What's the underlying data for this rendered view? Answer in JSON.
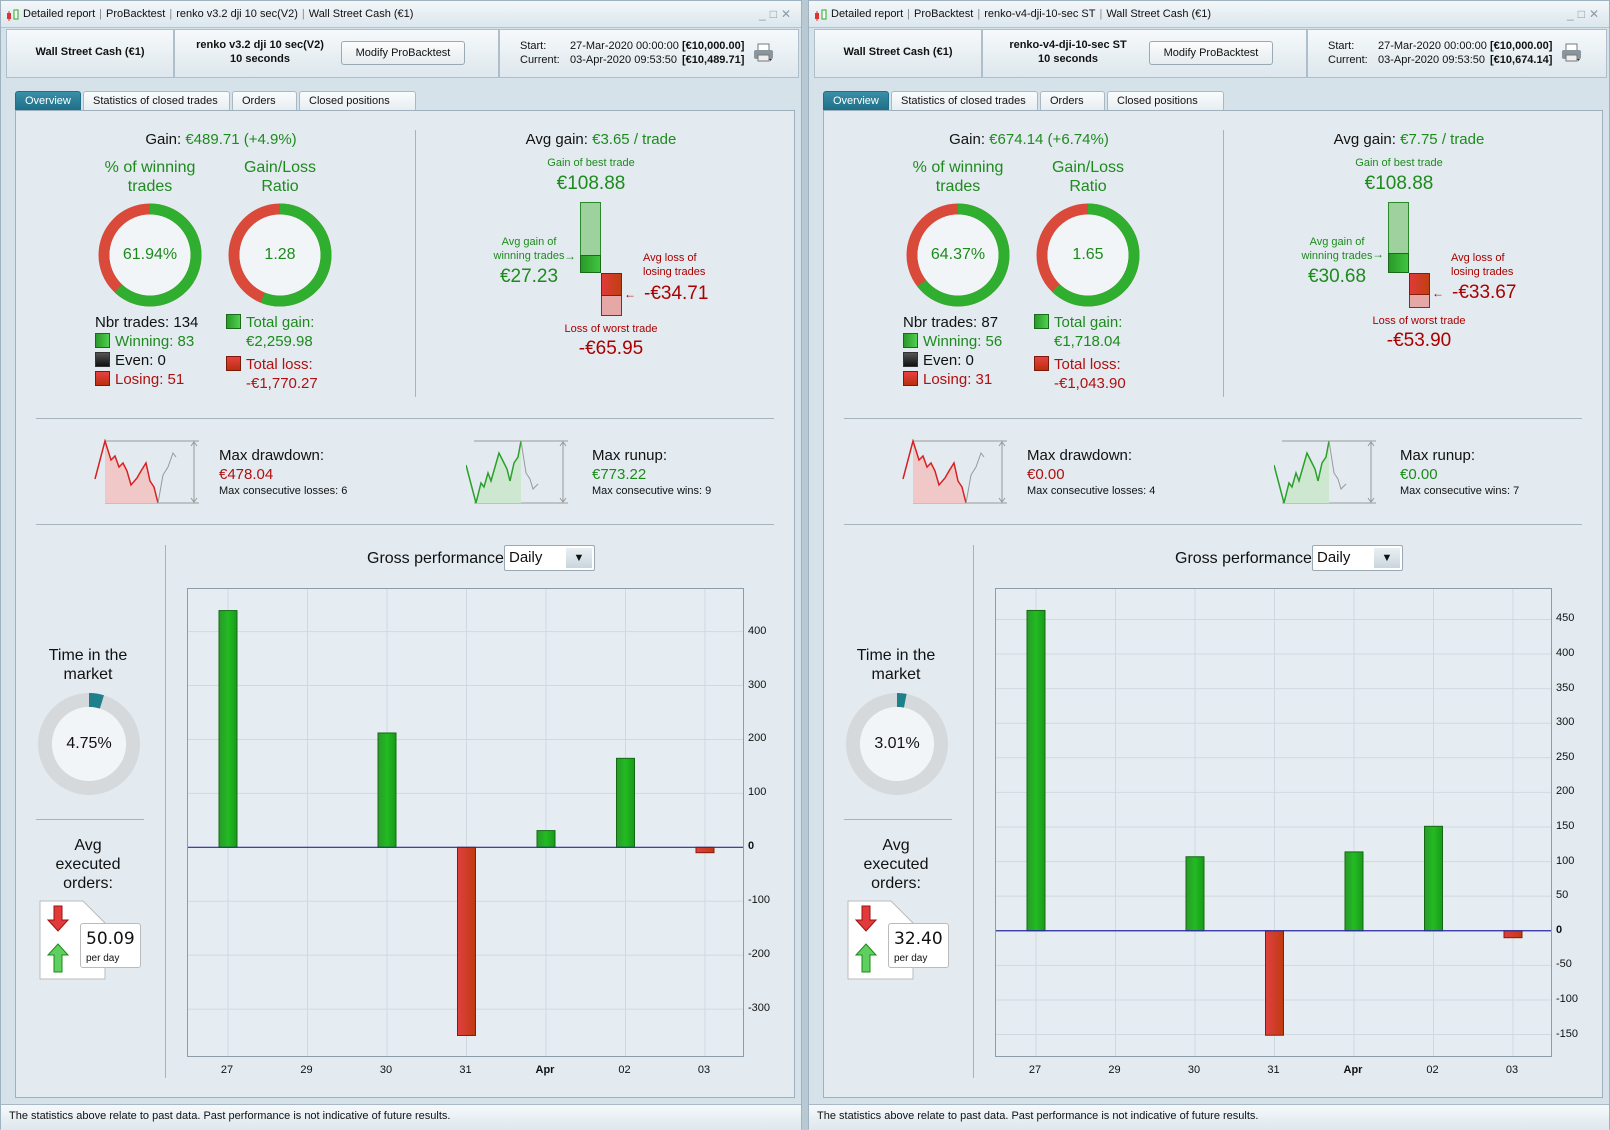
{
  "reports": [
    {
      "title_segments": [
        "Detailed report",
        "ProBacktest",
        "renko v3.2 dji 10 sec(V2)",
        "Wall Street Cash (€1)"
      ],
      "header": {
        "instrument": "Wall Street Cash (€1)",
        "strategy": "renko v3.2 dji 10 sec(V2)",
        "timeframe": "10 seconds",
        "modify_button": "Modify ProBacktest",
        "start_label": "Start:",
        "start_value": "27-Mar-2020 00:00:00",
        "start_capital": "[€10,000.00]",
        "current_label": "Current:",
        "current_value": "03-Apr-2020 09:53:50",
        "current_capital": "[€10,489.71]"
      },
      "tabs": [
        "Overview",
        "Statistics of closed trades",
        "Orders list",
        "Closed positions list"
      ],
      "gain_label": "Gain:",
      "gain_value": "€489.71 (+4.9%)",
      "winning_title_1": "% of winning",
      "winning_title_2": "trades",
      "winning_value": "61.94%",
      "winning_fraction": 0.6194,
      "ratio_title_1": "Gain/Loss",
      "ratio_title_2": "Ratio",
      "ratio_value": "1.28",
      "ratio_fraction": 0.5607,
      "nbr_trades": "Nbr trades: 134",
      "winning": "Winning: 83",
      "even": "Even: 0",
      "losing": "Losing: 51",
      "total_gain_label": "Total gain:",
      "total_gain": "€2,259.98",
      "total_loss_label": "Total loss:",
      "total_loss": "-€1,770.27",
      "avg_gain_label": "Avg gain:",
      "avg_gain_value": "€3.65 / trade",
      "best_label": "Gain of best trade",
      "best": "€108.88",
      "best_num": 108.88,
      "avg_win_label_1": "Avg gain of",
      "avg_win_label_2": "winning trades",
      "avg_win": "€27.23",
      "avg_win_num": 27.23,
      "avg_loss_label_1": "Avg loss of",
      "avg_loss_label_2": "losing trades",
      "avg_loss": "-€34.71",
      "avg_loss_num": 34.71,
      "worst_label": "Loss of worst trade",
      "worst": "-€65.95",
      "worst_num": 65.95,
      "drawdown_label": "Max drawdown:",
      "drawdown_value": "€478.04",
      "drawdown_consec": "Max consecutive losses: 6",
      "runup_label": "Max runup:",
      "runup_value": "€773.22",
      "runup_consec": "Max consecutive wins: 9",
      "time_title_1": "Time in the",
      "time_title_2": "market",
      "time_value": "4.75%",
      "time_fraction": 0.0475,
      "orders_title_1": "Avg",
      "orders_title_2": "executed",
      "orders_title_3": "orders:",
      "orders_value": "50.09",
      "orders_unit": "per day",
      "chart_title": "Gross performance",
      "period": "Daily",
      "footer": "The statistics above relate to past data. Past performance is not indicative of future results."
    },
    {
      "title_segments": [
        "Detailed report",
        "ProBacktest",
        "renko-v4-dji-10-sec ST",
        "Wall Street Cash (€1)"
      ],
      "header": {
        "instrument": "Wall Street Cash (€1)",
        "strategy": "renko-v4-dji-10-sec ST",
        "timeframe": "10 seconds",
        "modify_button": "Modify ProBacktest",
        "start_label": "Start:",
        "start_value": "27-Mar-2020 00:00:00",
        "start_capital": "[€10,000.00]",
        "current_label": "Current:",
        "current_value": "03-Apr-2020 09:53:50",
        "current_capital": "[€10,674.14]"
      },
      "tabs": [
        "Overview",
        "Statistics of closed trades",
        "Orders list",
        "Closed positions list"
      ],
      "gain_label": "Gain:",
      "gain_value": "€674.14 (+6.74%)",
      "winning_title_1": "% of winning",
      "winning_title_2": "trades",
      "winning_value": "64.37%",
      "winning_fraction": 0.6437,
      "ratio_title_1": "Gain/Loss",
      "ratio_title_2": "Ratio",
      "ratio_value": "1.65",
      "ratio_fraction": 0.622,
      "nbr_trades": "Nbr trades: 87",
      "winning": "Winning: 56",
      "even": "Even: 0",
      "losing": "Losing: 31",
      "total_gain_label": "Total gain:",
      "total_gain": "€1,718.04",
      "total_loss_label": "Total loss:",
      "total_loss": "-€1,043.90",
      "avg_gain_label": "Avg gain:",
      "avg_gain_value": "€7.75 / trade",
      "best_label": "Gain of best trade",
      "best": "€108.88",
      "best_num": 108.88,
      "avg_win_label_1": "Avg gain of",
      "avg_win_label_2": "winning trades",
      "avg_win": "€30.68",
      "avg_win_num": 30.68,
      "avg_loss_label_1": "Avg loss of",
      "avg_loss_label_2": "losing trades",
      "avg_loss": "-€33.67",
      "avg_loss_num": 33.67,
      "worst_label": "Loss of worst trade",
      "worst": "-€53.90",
      "worst_num": 53.9,
      "drawdown_label": "Max drawdown:",
      "drawdown_value": "€0.00",
      "drawdown_consec": "Max consecutive losses: 4",
      "runup_label": "Max runup:",
      "runup_value": "€0.00",
      "runup_consec": "Max consecutive wins: 7",
      "time_title_1": "Time in the",
      "time_title_2": "market",
      "time_value": "3.01%",
      "time_fraction": 0.0301,
      "orders_title_1": "Avg",
      "orders_title_2": "executed",
      "orders_title_3": "orders:",
      "orders_value": "32.40",
      "orders_unit": "per day",
      "chart_title": "Gross performance",
      "period": "Daily",
      "footer": "The statistics above relate to past data. Past performance is not indicative of future results."
    }
  ],
  "colors": {
    "gain": "#1e8a1e",
    "loss": "#b01010",
    "accent": "#1f6f88",
    "zero_line": "#2a2aa0"
  },
  "chart_data": [
    {
      "type": "bar",
      "title": "Gross performance",
      "categories": [
        "27",
        "29",
        "30",
        "31",
        "Apr",
        "02",
        "03"
      ],
      "values": [
        439,
        0,
        212,
        -349,
        31,
        165,
        -10
      ],
      "ylim": [
        -387,
        479
      ],
      "yticks": [
        -300,
        -200,
        -100,
        0,
        100,
        200,
        300,
        400
      ],
      "xlabel": "",
      "ylabel": "",
      "grid": true
    },
    {
      "type": "bar",
      "title": "Gross performance",
      "categories": [
        "27",
        "29",
        "30",
        "31",
        "Apr",
        "02",
        "03"
      ],
      "values": [
        463,
        0,
        107,
        -151,
        114,
        151,
        -10
      ],
      "ylim": [
        -181,
        494
      ],
      "yticks": [
        -150,
        -100,
        -50,
        0,
        50,
        100,
        150,
        200,
        250,
        300,
        350,
        400,
        450
      ],
      "xlabel": "",
      "ylabel": "",
      "grid": true
    }
  ]
}
